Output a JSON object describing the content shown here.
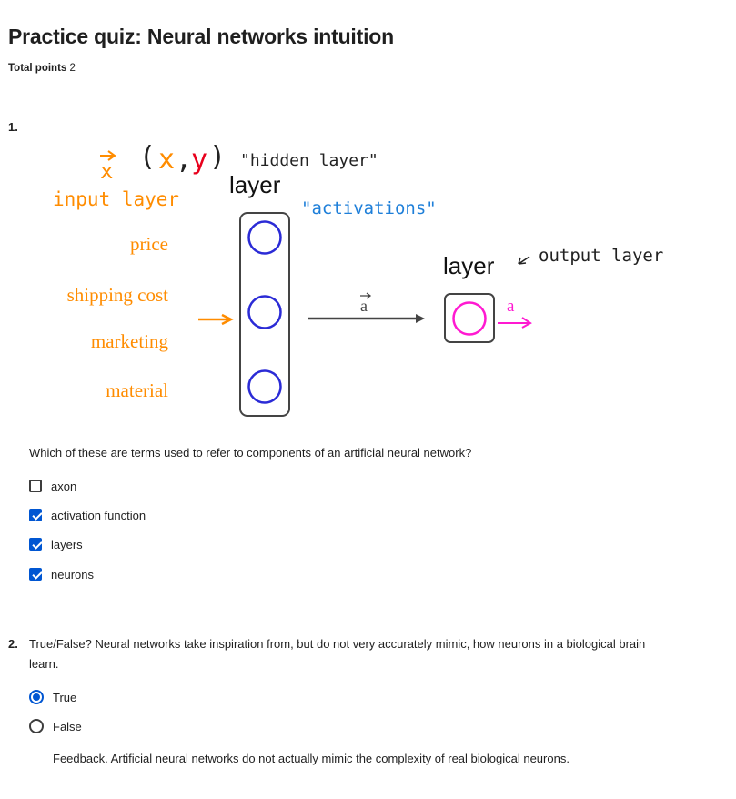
{
  "page": {
    "title": "Practice quiz: Neural networks intuition",
    "total_points_label": "Total points",
    "total_points_value": "2"
  },
  "question1": {
    "number": "1.",
    "diagram": {
      "x_vec": "x",
      "xy": [
        "(",
        "x",
        ",",
        "y",
        ")"
      ],
      "input_layer": "input layer",
      "hidden_layer": "\"hidden layer\"",
      "layer_mid": "layer",
      "activations": "\"activations\"",
      "features": [
        "price",
        "shipping cost",
        "marketing",
        "material"
      ],
      "a_vec": "a",
      "layer_out": "layer",
      "output_layer": "output layer",
      "a_out": "a",
      "colors": {
        "orange": "#ff8c00",
        "red": "#e8001c",
        "blue": "#1e7fd9",
        "neuron": "#2b2bd6",
        "output": "#ff19d1",
        "black": "#222222"
      }
    },
    "text": "Which of these are terms used to refer to components of an artificial neural network?",
    "options": [
      {
        "label": "axon",
        "checked": false
      },
      {
        "label": "activation function",
        "checked": true
      },
      {
        "label": "layers",
        "checked": true
      },
      {
        "label": "neurons",
        "checked": true
      }
    ]
  },
  "question2": {
    "number": "2.",
    "text_line1": "True/False? Neural networks take inspiration from, but do not very accurately mimic, how neurons in a biological brain",
    "text_line2": "learn.",
    "options": [
      {
        "label": "True",
        "checked": true
      },
      {
        "label": "False",
        "checked": false
      }
    ],
    "feedback": "Feedback. Artificial neural networks do not actually mimic the complexity of real biological neurons."
  }
}
